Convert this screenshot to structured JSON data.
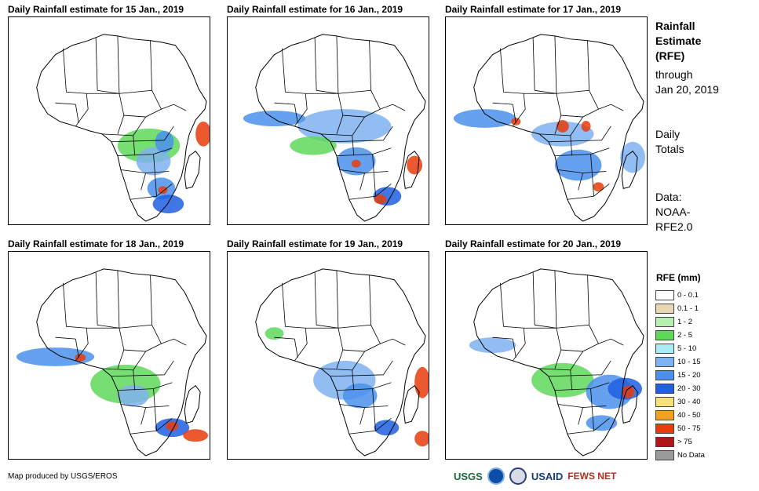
{
  "chart_data": [
    {
      "type": "map",
      "title": "Daily Rainfall estimate for 15 Jan., 2019",
      "date": "15 Jan., 2019",
      "rain_pattern": "central-south"
    },
    {
      "type": "map",
      "title": "Daily Rainfall estimate for 16 Jan., 2019",
      "date": "16 Jan., 2019",
      "rain_pattern": "central-south-coast"
    },
    {
      "type": "map",
      "title": "Daily Rainfall estimate for 17 Jan., 2019",
      "date": "17 Jan., 2019",
      "rain_pattern": "west-coast-central"
    },
    {
      "type": "map",
      "title": "Daily Rainfall estimate for 18 Jan., 2019",
      "date": "18 Jan., 2019",
      "rain_pattern": "west-coast-madagascar"
    },
    {
      "type": "map",
      "title": "Daily Rainfall estimate for 19 Jan., 2019",
      "date": "19 Jan., 2019",
      "rain_pattern": "central-madagascar"
    },
    {
      "type": "map",
      "title": "Daily Rainfall estimate for 20 Jan., 2019",
      "date": "20 Jan., 2019",
      "rain_pattern": "east-mozambique"
    }
  ],
  "side": {
    "title_lines": [
      "Rainfall",
      "Estimate",
      "(RFE)"
    ],
    "through_lines": [
      "through",
      "Jan 20, 2019"
    ],
    "totals_lines": [
      "Daily",
      "Totals"
    ],
    "data_lines": [
      "Data:",
      "NOAA-",
      "RFE2.0"
    ]
  },
  "legend": {
    "title": "RFE (mm)",
    "items": [
      {
        "label": "0 - 0.1",
        "color": "#ffffff"
      },
      {
        "label": "0.1 - 1",
        "color": "#e8d6b4"
      },
      {
        "label": "1 - 2",
        "color": "#b6f0b0"
      },
      {
        "label": "2 - 5",
        "color": "#5fd85a"
      },
      {
        "label": "5 - 10",
        "color": "#a8ecf4"
      },
      {
        "label": "10 - 15",
        "color": "#7fb2f0"
      },
      {
        "label": "15 - 20",
        "color": "#4a90ec"
      },
      {
        "label": "20 - 30",
        "color": "#1f5fe0"
      },
      {
        "label": "30 - 40",
        "color": "#f6e07a"
      },
      {
        "label": "40 - 50",
        "color": "#f4a020"
      },
      {
        "label": "50 - 75",
        "color": "#e83c0c"
      },
      {
        "label": "> 75",
        "color": "#b01818"
      },
      {
        "label": "No Data",
        "color": "#9a9a9a"
      }
    ]
  },
  "footer": {
    "credit": "Map produced by USGS/EROS",
    "logos": [
      "USGS",
      "NOAA",
      "DHS",
      "USAID",
      "FEWS NET"
    ]
  }
}
